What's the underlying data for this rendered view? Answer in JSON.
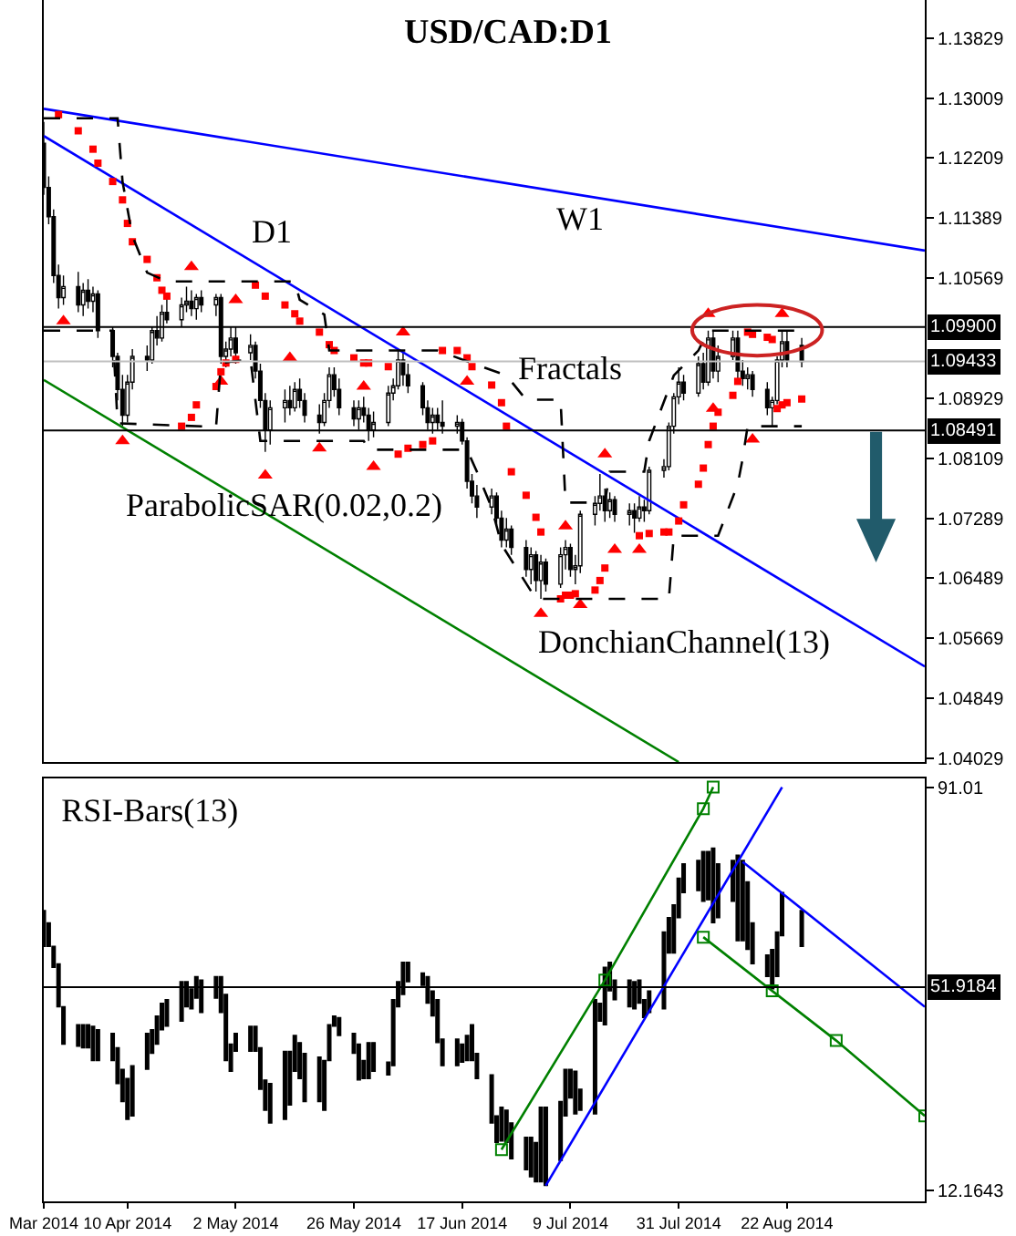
{
  "chart_data": [
    {
      "type": "candlestick",
      "title": "USD/CAD:D1",
      "tick_labels": "y",
      "x": [
        "2014-03-24",
        "2014-03-25",
        "2014-03-26",
        "2014-03-27",
        "2014-03-28",
        "2014-03-31",
        "2014-04-01",
        "2014-04-02",
        "2014-04-03",
        "2014-04-04",
        "2014-04-07",
        "2014-04-08",
        "2014-04-09",
        "2014-04-10",
        "2014-04-11",
        "2014-04-14",
        "2014-04-15",
        "2014-04-16",
        "2014-04-17",
        "2014-04-18",
        "2014-04-21",
        "2014-04-22",
        "2014-04-23",
        "2014-04-24",
        "2014-04-25",
        "2014-04-28",
        "2014-04-29",
        "2014-04-30",
        "2014-05-01",
        "2014-05-02",
        "2014-05-05",
        "2014-05-06",
        "2014-05-07",
        "2014-05-08",
        "2014-05-09",
        "2014-05-12",
        "2014-05-13",
        "2014-05-14",
        "2014-05-15",
        "2014-05-16",
        "2014-05-19",
        "2014-05-20",
        "2014-05-21",
        "2014-05-22",
        "2014-05-23",
        "2014-05-26",
        "2014-05-27",
        "2014-05-28",
        "2014-05-29",
        "2014-05-30",
        "2014-06-02",
        "2014-06-03",
        "2014-06-04",
        "2014-06-05",
        "2014-06-06",
        "2014-06-09",
        "2014-06-10",
        "2014-06-11",
        "2014-06-12",
        "2014-06-13",
        "2014-06-16",
        "2014-06-17",
        "2014-06-18",
        "2014-06-19",
        "2014-06-20",
        "2014-06-23",
        "2014-06-24",
        "2014-06-25",
        "2014-06-26",
        "2014-06-27",
        "2014-06-30",
        "2014-07-01",
        "2014-07-02",
        "2014-07-03",
        "2014-07-04",
        "2014-07-07",
        "2014-07-08",
        "2014-07-09",
        "2014-07-10",
        "2014-07-11",
        "2014-07-14",
        "2014-07-15",
        "2014-07-16",
        "2014-07-17",
        "2014-07-18",
        "2014-07-21",
        "2014-07-22",
        "2014-07-23",
        "2014-07-24",
        "2014-07-25",
        "2014-07-28",
        "2014-07-29",
        "2014-07-30",
        "2014-07-31",
        "2014-08-01",
        "2014-08-04",
        "2014-08-05",
        "2014-08-06",
        "2014-08-07",
        "2014-08-08",
        "2014-08-11",
        "2014-08-12",
        "2014-08-13",
        "2014-08-14",
        "2014-08-15",
        "2014-08-18",
        "2014-08-19",
        "2014-08-20",
        "2014-08-21",
        "2014-08-22",
        "2014-08-25"
      ],
      "ohlc": [
        [
          1.124,
          1.1269,
          1.117,
          1.118
        ],
        [
          1.118,
          1.1195,
          1.113,
          1.114
        ],
        [
          1.114,
          1.115,
          1.105,
          1.106
        ],
        [
          1.106,
          1.1075,
          1.1015,
          1.103
        ],
        [
          1.103,
          1.106,
          1.102,
          1.1045
        ],
        [
          1.1045,
          1.1065,
          1.101,
          1.102
        ],
        [
          1.102,
          1.105,
          1.1005,
          1.104
        ],
        [
          1.104,
          1.1055,
          1.1015,
          1.1025
        ],
        [
          1.1025,
          1.1045,
          1.101,
          1.1035
        ],
        [
          1.1035,
          1.104,
          1.0975,
          1.0985
        ],
        [
          1.0985,
          1.099,
          1.0935,
          1.095
        ],
        [
          1.095,
          1.0955,
          1.089,
          1.0905
        ],
        [
          1.0905,
          1.0925,
          1.0855,
          1.087
        ],
        [
          1.087,
          1.0925,
          1.086,
          1.0915
        ],
        [
          1.0915,
          1.096,
          1.0905,
          1.095
        ],
        [
          1.095,
          1.0965,
          1.093,
          1.0945
        ],
        [
          1.0945,
          1.099,
          1.094,
          1.0985
        ],
        [
          1.0985,
          1.1005,
          1.0965,
          1.0975
        ],
        [
          1.0975,
          1.102,
          1.097,
          1.101
        ],
        [
          1.101,
          1.103,
          1.0995,
          1.1
        ],
        [
          1.1,
          1.103,
          1.099,
          1.102
        ],
        [
          1.102,
          1.1045,
          1.101,
          1.1025
        ],
        [
          1.1025,
          1.104,
          1.1005,
          1.1015
        ],
        [
          1.1015,
          1.1035,
          1.1,
          1.103
        ],
        [
          1.103,
          1.104,
          1.101,
          1.102
        ],
        [
          1.102,
          1.1035,
          1.1005,
          1.103
        ],
        [
          1.103,
          1.1035,
          1.094,
          1.095
        ],
        [
          1.095,
          1.097,
          1.0935,
          1.096
        ],
        [
          1.096,
          1.099,
          1.095,
          1.0975
        ],
        [
          1.0975,
          1.099,
          1.094,
          1.0955
        ],
        [
          1.0955,
          1.098,
          1.0945,
          1.0965
        ],
        [
          1.0965,
          1.097,
          1.092,
          1.093
        ],
        [
          1.093,
          1.094,
          1.088,
          1.089
        ],
        [
          1.089,
          1.09,
          1.082,
          1.085
        ],
        [
          1.085,
          1.089,
          1.083,
          1.088
        ],
        [
          1.088,
          1.0905,
          1.086,
          1.089
        ],
        [
          1.089,
          1.091,
          1.087,
          1.088
        ],
        [
          1.088,
          1.0915,
          1.0875,
          1.0905
        ],
        [
          1.0905,
          1.092,
          1.088,
          1.089
        ],
        [
          1.089,
          1.09,
          1.086,
          1.087
        ],
        [
          1.087,
          1.0885,
          1.0845,
          1.086
        ],
        [
          1.086,
          1.09,
          1.0855,
          1.089
        ],
        [
          1.089,
          1.0935,
          1.088,
          1.0925
        ],
        [
          1.0925,
          1.0935,
          1.0895,
          1.0905
        ],
        [
          1.0905,
          1.092,
          1.087,
          1.088
        ],
        [
          1.088,
          1.089,
          1.0855,
          1.0865
        ],
        [
          1.0865,
          1.089,
          1.085,
          1.088
        ],
        [
          1.088,
          1.0895,
          1.086,
          1.087
        ],
        [
          1.087,
          1.088,
          1.0835,
          1.085
        ],
        [
          1.085,
          1.0875,
          1.084,
          1.086
        ],
        [
          1.086,
          1.091,
          1.0855,
          1.09
        ],
        [
          1.09,
          1.092,
          1.089,
          1.091
        ],
        [
          1.091,
          1.096,
          1.0905,
          1.0945
        ],
        [
          1.0945,
          1.0955,
          1.091,
          1.0925
        ],
        [
          1.0925,
          1.094,
          1.09,
          1.091
        ],
        [
          1.091,
          1.0915,
          1.087,
          1.088
        ],
        [
          1.088,
          1.089,
          1.085,
          1.086
        ],
        [
          1.086,
          1.088,
          1.0845,
          1.087
        ],
        [
          1.087,
          1.088,
          1.085,
          1.086
        ],
        [
          1.086,
          1.089,
          1.0845,
          1.0855
        ],
        [
          1.0855,
          1.087,
          1.0845,
          1.086
        ],
        [
          1.086,
          1.0865,
          1.083,
          1.0835
        ],
        [
          1.0835,
          1.084,
          1.077,
          1.078
        ],
        [
          1.078,
          1.079,
          1.075,
          1.076
        ],
        [
          1.076,
          1.0775,
          1.073,
          1.0745
        ],
        [
          1.0745,
          1.077,
          1.0735,
          1.076
        ],
        [
          1.076,
          1.0765,
          1.072,
          1.073
        ],
        [
          1.073,
          1.074,
          1.069,
          1.07
        ],
        [
          1.07,
          1.073,
          1.069,
          1.0715
        ],
        [
          1.0715,
          1.072,
          1.068,
          1.069
        ],
        [
          1.069,
          1.07,
          1.065,
          1.066
        ],
        [
          1.066,
          1.069,
          1.064,
          1.068
        ],
        [
          1.068,
          1.0685,
          1.063,
          1.0645
        ],
        [
          1.0645,
          1.068,
          1.062,
          1.067
        ],
        [
          1.067,
          1.0675,
          1.063,
          1.064
        ],
        [
          1.064,
          1.069,
          1.0635,
          1.068
        ],
        [
          1.068,
          1.07,
          1.066,
          1.069
        ],
        [
          1.069,
          1.0695,
          1.065,
          1.066
        ],
        [
          1.066,
          1.068,
          1.064,
          1.0665
        ],
        [
          1.0665,
          1.074,
          1.0655,
          1.0735
        ],
        [
          1.0735,
          1.076,
          1.072,
          1.075
        ],
        [
          1.075,
          1.079,
          1.074,
          1.076
        ],
        [
          1.076,
          1.077,
          1.0725,
          1.074
        ],
        [
          1.074,
          1.0765,
          1.073,
          1.0755
        ],
        [
          1.0755,
          1.076,
          1.0725,
          1.0735
        ],
        [
          1.0735,
          1.075,
          1.072,
          1.074
        ],
        [
          1.074,
          1.075,
          1.071,
          1.073
        ],
        [
          1.073,
          1.076,
          1.0725,
          1.0745
        ],
        [
          1.0745,
          1.0755,
          1.0725,
          1.074
        ],
        [
          1.074,
          1.08,
          1.0735,
          1.0795
        ],
        [
          1.0795,
          1.081,
          1.0785,
          1.08
        ],
        [
          1.08,
          1.086,
          1.0795,
          1.0855
        ],
        [
          1.0855,
          1.09,
          1.0845,
          1.0895
        ],
        [
          1.0895,
          1.0935,
          1.0885,
          1.0915
        ],
        [
          1.0915,
          1.0925,
          1.089,
          1.09
        ],
        [
          1.09,
          1.095,
          1.0895,
          1.094
        ],
        [
          1.094,
          1.0955,
          1.0905,
          1.0915
        ],
        [
          1.0915,
          1.0985,
          1.091,
          1.0975
        ],
        [
          1.0975,
          1.0985,
          1.092,
          1.093
        ],
        [
          1.093,
          1.0965,
          1.0915,
          1.095
        ],
        [
          1.095,
          1.0985,
          1.0945,
          1.0975
        ],
        [
          1.0975,
          1.0985,
          1.092,
          1.093
        ],
        [
          1.093,
          1.0945,
          1.091,
          1.092
        ],
        [
          1.092,
          1.0935,
          1.0905,
          1.0925
        ],
        [
          1.0925,
          1.093,
          1.0895,
          1.0905
        ],
        [
          1.0905,
          1.0915,
          1.087,
          1.088
        ],
        [
          1.088,
          1.0895,
          1.0855,
          1.089
        ],
        [
          1.089,
          1.095,
          1.0885,
          1.0945
        ],
        [
          1.0945,
          1.0985,
          1.0935,
          1.097
        ],
        [
          1.097,
          1.0985,
          1.0935,
          1.0945
        ],
        [
          1.0965,
          1.0975,
          1.0935,
          1.0943
        ]
      ],
      "xlim": [
        "2014-03-24",
        "2014-09-19"
      ],
      "ylim": [
        1.0398,
        1.1435
      ],
      "yticks": [
        1.13829,
        1.13009,
        1.12209,
        1.11389,
        1.10569,
        1.08929,
        1.08109,
        1.07289,
        1.06489,
        1.05669,
        1.04849,
        1.04029
      ],
      "ref_lines": [
        {
          "axis": "y",
          "value": 1.099,
          "label": "1.09900",
          "color": "#000000"
        },
        {
          "axis": "y",
          "value": 1.09433,
          "label": "1.09433",
          "color": "#c0c0c0"
        },
        {
          "axis": "y",
          "value": 1.08491,
          "label": "1.08491",
          "color": "#000000"
        }
      ],
      "series": [
        {
          "type": "line",
          "color": "#0000ff",
          "x": [
            "2014-03-24",
            "2014-09-19"
          ],
          "values": [
            1.1287,
            1.1094
          ]
        },
        {
          "type": "line",
          "color": "#0000ff",
          "x": [
            "2014-03-24",
            "2014-09-19"
          ],
          "values": [
            1.125,
            1.0528
          ]
        },
        {
          "type": "line",
          "color": "#008000",
          "x": [
            "2014-03-24",
            "2014-07-31"
          ],
          "values": [
            1.0918,
            1.0398
          ]
        },
        {
          "type": "scatter",
          "color": "#ff0000",
          "marker": "square",
          "x": [
            "2014-03-27",
            "2014-03-31",
            "2014-04-03",
            "2014-04-04",
            "2014-04-07",
            "2014-04-09",
            "2014-04-10",
            "2014-04-11",
            "2014-04-14",
            "2014-04-16",
            "2014-04-17",
            "2014-04-18",
            "2014-04-21",
            "2014-04-23",
            "2014-04-24",
            "2014-04-28",
            "2014-04-29",
            "2014-04-30",
            "2014-05-02",
            "2014-05-06",
            "2014-05-08",
            "2014-05-12",
            "2014-05-14",
            "2014-05-15",
            "2014-05-19",
            "2014-05-21",
            "2014-05-22",
            "2014-05-26",
            "2014-05-28",
            "2014-05-29",
            "2014-06-02",
            "2014-06-04",
            "2014-06-06",
            "2014-06-09",
            "2014-06-11",
            "2014-06-13",
            "2014-06-16",
            "2014-06-18",
            "2014-06-19",
            "2014-06-23",
            "2014-06-25",
            "2014-06-26",
            "2014-06-27",
            "2014-06-30",
            "2014-07-02",
            "2014-07-03",
            "2014-07-07",
            "2014-07-08",
            "2014-07-09",
            "2014-07-10",
            "2014-07-14",
            "2014-07-15",
            "2014-07-16",
            "2014-07-23",
            "2014-07-25",
            "2014-07-28",
            "2014-07-29",
            "2014-07-31",
            "2014-08-01",
            "2014-08-04",
            "2014-08-05",
            "2014-08-06",
            "2014-08-07",
            "2014-08-08",
            "2014-08-11",
            "2014-08-12",
            "2014-08-14",
            "2014-08-15",
            "2014-08-18",
            "2014-08-19",
            "2014-08-20",
            "2014-08-21",
            "2014-08-22",
            "2014-08-25"
          ],
          "values": [
            1.1279,
            1.1257,
            1.1232,
            1.1213,
            1.1188,
            1.1163,
            1.1131,
            1.1106,
            1.1082,
            1.1057,
            1.104,
            1.1032,
            1.0855,
            1.0867,
            1.0884,
            1.0909,
            1.0929,
            1.0941,
            1.0946,
            1.1047,
            1.1032,
            1.102,
            1.1008,
            1.0998,
            1.0983,
            1.0966,
            1.0958,
            1.0948,
            1.0941,
            1.0941,
            1.0936,
            1.0817,
            1.0825,
            1.083,
            1.0835,
            1.0958,
            1.0958,
            1.0948,
            1.0936,
            1.0911,
            1.0887,
            1.0855,
            1.0793,
            1.0761,
            1.0731,
            1.0711,
            1.062,
            1.0625,
            1.0625,
            1.0627,
            1.0632,
            1.0645,
            1.0662,
            1.0706,
            1.0709,
            1.0711,
            1.0711,
            1.0726,
            1.0748,
            1.0776,
            1.0798,
            1.083,
            1.0855,
            1.0874,
            1.0897,
            1.0916,
            1.0983,
            1.098,
            1.0976,
            1.0973,
            1.0879,
            1.0884,
            1.0887,
            1.0892
          ]
        },
        {
          "type": "scatter",
          "color": "#ff0000",
          "marker": "triangle",
          "x": [
            "2014-04-23",
            "2014-05-02",
            "2014-05-13",
            "2014-05-28",
            "2014-06-05",
            "2014-06-18",
            "2014-07-08",
            "2014-07-16",
            "2014-08-06",
            "2014-08-21"
          ],
          "values": [
            1.1072,
            1.1027,
            1.0948,
            1.0909,
            1.0983,
            1.0916,
            1.0719,
            1.0817,
            1.1008,
            1.1008
          ]
        },
        {
          "type": "scatter",
          "color": "#ff0000",
          "marker": "triangle",
          "x": [
            "2014-03-28",
            "2014-04-09",
            "2014-04-29",
            "2014-05-08",
            "2014-05-19",
            "2014-05-30",
            "2014-07-03",
            "2014-07-11",
            "2014-07-18",
            "2014-07-23",
            "2014-08-07",
            "2014-08-15"
          ],
          "values": [
            1.0998,
            1.0835,
            1.0916,
            1.0788,
            1.0825,
            1.08,
            1.06,
            1.0612,
            1.0687,
            1.0687,
            1.0879,
            1.0837
          ]
        },
        {
          "type": "line",
          "color": "#000000",
          "line_style": "dashed",
          "x": [
            "2014-03-24",
            "2014-04-08",
            "2014-04-09",
            "2014-04-11",
            "2014-04-14",
            "2014-04-18",
            "2014-05-14",
            "2014-05-15",
            "2014-05-20",
            "2014-05-21",
            "2014-06-12",
            "2014-06-26",
            "2014-06-30",
            "2014-07-07",
            "2014-07-08",
            "2014-07-16",
            "2014-07-17",
            "2014-07-24",
            "2014-07-25",
            "2014-07-30",
            "2014-08-04",
            "2014-08-06",
            "2014-08-25"
          ],
          "values": [
            1.1274,
            1.1274,
            1.1188,
            1.1114,
            1.1064,
            1.1052,
            1.1052,
            1.1027,
            1.1007,
            1.0958,
            1.0958,
            1.0924,
            1.0891,
            1.0891,
            1.0751,
            1.0751,
            1.0793,
            1.0793,
            1.0835,
            1.0924,
            1.0958,
            1.0985,
            1.0985
          ]
        },
        {
          "type": "line",
          "color": "#000000",
          "line_style": "dashed",
          "x": [
            "2014-03-24",
            "2014-04-07",
            "2014-04-08",
            "2014-04-28",
            "2014-04-29",
            "2014-05-05",
            "2014-05-07",
            "2014-05-28",
            "2014-05-29",
            "2014-06-18",
            "2014-06-20",
            "2014-06-23",
            "2014-06-25",
            "2014-07-02",
            "2014-07-29",
            "2014-07-30",
            "2014-08-08",
            "2014-08-12",
            "2014-08-13",
            "2014-08-14",
            "2014-08-25"
          ],
          "values": [
            1.0985,
            1.0985,
            1.0859,
            1.0854,
            1.0941,
            1.0946,
            1.0835,
            1.0835,
            1.0823,
            1.0823,
            1.0793,
            1.0744,
            1.0694,
            1.062,
            1.062,
            1.0706,
            1.0706,
            1.0776,
            1.0811,
            1.0855,
            1.0855
          ]
        }
      ],
      "annotations": [
        "D1",
        "W1",
        "Fractals",
        "ParabolicSAR(0.02,0.2)",
        "DonchianChannel(13)"
      ]
    },
    {
      "type": "candlestick",
      "title": "RSI-Bars(13)",
      "x": [
        "2014-03-24",
        "2014-03-25",
        "2014-03-26",
        "2014-03-27",
        "2014-03-28",
        "2014-03-31",
        "2014-04-01",
        "2014-04-02",
        "2014-04-03",
        "2014-04-04",
        "2014-04-07",
        "2014-04-08",
        "2014-04-09",
        "2014-04-10",
        "2014-04-11",
        "2014-04-14",
        "2014-04-15",
        "2014-04-16",
        "2014-04-17",
        "2014-04-18",
        "2014-04-21",
        "2014-04-22",
        "2014-04-23",
        "2014-04-24",
        "2014-04-25",
        "2014-04-28",
        "2014-04-29",
        "2014-04-30",
        "2014-05-01",
        "2014-05-02",
        "2014-05-05",
        "2014-05-06",
        "2014-05-07",
        "2014-05-08",
        "2014-05-09",
        "2014-05-12",
        "2014-05-13",
        "2014-05-14",
        "2014-05-15",
        "2014-05-16",
        "2014-05-19",
        "2014-05-20",
        "2014-05-21",
        "2014-05-22",
        "2014-05-23",
        "2014-05-26",
        "2014-05-27",
        "2014-05-28",
        "2014-05-29",
        "2014-05-30",
        "2014-06-02",
        "2014-06-03",
        "2014-06-04",
        "2014-06-05",
        "2014-06-06",
        "2014-06-09",
        "2014-06-10",
        "2014-06-11",
        "2014-06-12",
        "2014-06-13",
        "2014-06-16",
        "2014-06-17",
        "2014-06-18",
        "2014-06-19",
        "2014-06-20",
        "2014-06-23",
        "2014-06-24",
        "2014-06-25",
        "2014-06-26",
        "2014-06-27",
        "2014-06-30",
        "2014-07-01",
        "2014-07-02",
        "2014-07-03",
        "2014-07-04",
        "2014-07-07",
        "2014-07-08",
        "2014-07-09",
        "2014-07-10",
        "2014-07-11",
        "2014-07-14",
        "2014-07-15",
        "2014-07-16",
        "2014-07-17",
        "2014-07-18",
        "2014-07-21",
        "2014-07-22",
        "2014-07-23",
        "2014-07-24",
        "2014-07-25",
        "2014-07-28",
        "2014-07-29",
        "2014-07-30",
        "2014-07-31",
        "2014-08-01",
        "2014-08-04",
        "2014-08-05",
        "2014-08-06",
        "2014-08-07",
        "2014-08-08",
        "2014-08-11",
        "2014-08-12",
        "2014-08-13",
        "2014-08-14",
        "2014-08-15",
        "2014-08-18",
        "2014-08-19",
        "2014-08-20",
        "2014-08-21",
        "2014-08-25"
      ],
      "ohlc": [
        [
          66.9,
          66.9,
          59.9,
          59.9
        ],
        [
          64.5,
          64.5,
          59.9,
          59.9
        ],
        [
          59.9,
          59.9,
          55.8,
          55.8
        ],
        [
          56.5,
          56.5,
          48.1,
          48.1
        ],
        [
          48.1,
          48.1,
          40.8,
          40.8
        ],
        [
          44.6,
          44.6,
          40.4,
          40.4
        ],
        [
          44.6,
          44.6,
          40.1,
          40.1
        ],
        [
          44.6,
          44.6,
          40.1,
          40.1
        ],
        [
          44.3,
          44.3,
          37.6,
          37.6
        ],
        [
          43.6,
          43.6,
          37.6,
          37.6
        ],
        [
          42.9,
          42.9,
          37.6,
          37.6
        ],
        [
          40.1,
          40.1,
          33.1,
          33.1
        ],
        [
          35.9,
          35.9,
          29.6,
          29.6
        ],
        [
          34.1,
          34.1,
          26.1,
          26.1
        ],
        [
          36.6,
          36.6,
          26.8,
          26.8
        ],
        [
          42.9,
          42.9,
          35.9,
          35.9
        ],
        [
          43.6,
          43.6,
          39.0,
          39.0
        ],
        [
          46.3,
          46.3,
          40.8,
          40.8
        ],
        [
          48.8,
          48.8,
          43.6,
          43.6
        ],
        [
          49.5,
          49.5,
          44.3,
          44.3
        ],
        [
          53.0,
          53.0,
          45.3,
          45.3
        ],
        [
          53.0,
          53.0,
          48.1,
          48.1
        ],
        [
          51.6,
          51.6,
          47.7,
          47.7
        ],
        [
          54.0,
          54.0,
          49.8,
          49.8
        ],
        [
          53.3,
          53.3,
          47.0,
          47.0
        ],
        [
          54.0,
          54.0,
          49.8,
          49.8
        ],
        [
          54.0,
          54.0,
          47.0,
          47.0
        ],
        [
          50.5,
          50.5,
          37.6,
          37.6
        ],
        [
          40.8,
          40.8,
          35.5,
          35.5
        ],
        [
          42.9,
          42.9,
          39.4,
          39.4
        ],
        [
          44.3,
          44.3,
          39.4,
          39.4
        ],
        [
          44.3,
          44.3,
          39.4,
          39.4
        ],
        [
          40.1,
          40.1,
          32.0,
          32.0
        ],
        [
          33.8,
          33.8,
          27.9,
          27.9
        ],
        [
          33.1,
          33.1,
          25.4,
          25.4
        ],
        [
          39.4,
          39.4,
          26.1,
          26.1
        ],
        [
          39.4,
          39.4,
          28.9,
          28.9
        ],
        [
          42.5,
          42.5,
          35.5,
          35.5
        ],
        [
          41.1,
          41.1,
          34.1,
          34.1
        ],
        [
          39.0,
          39.0,
          29.6,
          29.6
        ],
        [
          38.3,
          38.3,
          29.6,
          29.6
        ],
        [
          37.6,
          37.6,
          27.9,
          27.9
        ],
        [
          44.6,
          44.6,
          37.6,
          37.6
        ],
        [
          46.3,
          46.3,
          44.3,
          44.3
        ],
        [
          46.0,
          46.0,
          42.5,
          42.5
        ],
        [
          42.9,
          42.9,
          39.0,
          39.0
        ],
        [
          40.8,
          40.8,
          33.8,
          33.8
        ],
        [
          37.6,
          37.6,
          34.1,
          34.1
        ],
        [
          41.1,
          41.1,
          34.1,
          34.1
        ],
        [
          41.1,
          41.1,
          35.5,
          35.5
        ],
        [
          37.3,
          37.3,
          34.8,
          34.8
        ],
        [
          49.5,
          49.5,
          36.6,
          36.6
        ],
        [
          53.0,
          53.0,
          48.1,
          48.1
        ],
        [
          56.8,
          56.8,
          50.5,
          50.5
        ],
        [
          56.8,
          56.8,
          53.0,
          53.0
        ],
        [
          54.7,
          54.7,
          52.3,
          52.3
        ],
        [
          54.0,
          54.0,
          48.8,
          48.8
        ],
        [
          51.2,
          51.2,
          46.3,
          46.3
        ],
        [
          49.5,
          49.5,
          41.1,
          41.1
        ],
        [
          41.8,
          41.8,
          36.6,
          36.6
        ],
        [
          41.8,
          41.8,
          36.6,
          36.6
        ],
        [
          40.8,
          40.8,
          37.3,
          37.3
        ],
        [
          42.5,
          42.5,
          37.6,
          37.6
        ],
        [
          44.6,
          44.6,
          37.6,
          37.6
        ],
        [
          39.0,
          39.0,
          34.1,
          34.1
        ],
        [
          34.8,
          34.8,
          25.4,
          25.4
        ],
        [
          26.8,
          26.8,
          21.6,
          21.6
        ],
        [
          28.5,
          28.5,
          21.9,
          21.9
        ],
        [
          27.9,
          27.9,
          21.6,
          21.6
        ],
        [
          25.4,
          25.4,
          18.4,
          18.4
        ],
        [
          22.6,
          22.6,
          16.3,
          16.3
        ],
        [
          22.6,
          22.6,
          14.9,
          14.9
        ],
        [
          21.6,
          21.6,
          13.9,
          13.9
        ],
        [
          28.5,
          28.5,
          13.9,
          13.9
        ],
        [
          28.5,
          28.5,
          13.2,
          13.2
        ],
        [
          29.6,
          29.6,
          18.1,
          18.1
        ],
        [
          35.9,
          35.9,
          26.8,
          26.8
        ],
        [
          35.9,
          35.9,
          30.3,
          30.3
        ],
        [
          35.5,
          35.5,
          27.2,
          27.2
        ],
        [
          32.0,
          32.0,
          27.9,
          27.9
        ],
        [
          49.5,
          49.5,
          27.2,
          27.2
        ],
        [
          48.8,
          48.8,
          45.3,
          45.3
        ],
        [
          55.8,
          55.8,
          44.6,
          44.6
        ],
        [
          56.8,
          56.8,
          51.2,
          51.2
        ],
        [
          53.3,
          53.3,
          49.5,
          49.5
        ],
        [
          53.3,
          53.3,
          48.1,
          48.1
        ],
        [
          53.0,
          53.0,
          47.7,
          47.7
        ],
        [
          53.3,
          53.3,
          48.8,
          48.8
        ],
        [
          49.5,
          49.5,
          46.0,
          46.0
        ],
        [
          51.2,
          51.2,
          47.0,
          47.0
        ],
        [
          62.7,
          62.7,
          47.7,
          47.7
        ],
        [
          65.5,
          65.5,
          58.6,
          58.6
        ],
        [
          68.0,
          68.0,
          58.6,
          58.6
        ],
        [
          73.2,
          73.2,
          65.5,
          65.5
        ],
        [
          76.0,
          76.0,
          70.4,
          70.4
        ],
        [
          76.7,
          76.7,
          70.8,
          70.8
        ],
        [
          78.4,
          78.4,
          68.7,
          68.7
        ],
        [
          78.4,
          78.4,
          69.0,
          69.0
        ],
        [
          79.1,
          79.1,
          64.5,
          64.5
        ],
        [
          76.0,
          76.0,
          65.5,
          65.5
        ],
        [
          76.7,
          76.7,
          68.7,
          68.7
        ],
        [
          77.7,
          77.7,
          61.0,
          61.0
        ],
        [
          76.7,
          76.7,
          61.0,
          61.0
        ],
        [
          72.5,
          72.5,
          59.3,
          59.3
        ],
        [
          64.5,
          64.5,
          56.5,
          56.5
        ],
        [
          58.2,
          58.2,
          54.0,
          54.0
        ],
        [
          59.3,
          59.3,
          51.6,
          51.6
        ],
        [
          62.7,
          62.7,
          54.0,
          54.0
        ],
        [
          70.4,
          70.4,
          62.0,
          62.0
        ],
        [
          66.9,
          66.9,
          59.9,
          59.9
        ]
      ],
      "xlim": [
        "2014-03-24",
        "2014-09-19"
      ],
      "ylim": [
        10.1,
        92.7
      ],
      "yticks": [
        91.01,
        12.1643
      ],
      "xticks": [
        {
          "value": "2014-03-24",
          "label": "Mar 2014"
        },
        {
          "value": "2014-04-10",
          "label": "10 Apr 2014"
        },
        {
          "value": "2014-05-02",
          "label": "2 May 2014"
        },
        {
          "value": "2014-05-26",
          "label": "26 May 2014"
        },
        {
          "value": "2014-06-17",
          "label": "17 Jun 2014"
        },
        {
          "value": "2014-07-09",
          "label": "9 Jul 2014"
        },
        {
          "value": "2014-07-31",
          "label": "31 Jul 2014"
        },
        {
          "value": "2014-08-22",
          "label": "22 Aug 2014"
        }
      ],
      "ref_lines": [
        {
          "axis": "y",
          "value": 51.9184,
          "label": "51.9184",
          "color": "#000000"
        }
      ],
      "series": [
        {
          "type": "line",
          "color": "#008000",
          "marker": "square",
          "x": [
            "2014-06-25",
            "2014-07-16",
            "2014-08-05",
            "2014-08-07"
          ],
          "values": [
            20.2,
            53.3,
            86.8,
            91.0
          ]
        },
        {
          "type": "line",
          "color": "#0000ff",
          "x": [
            "2014-07-04",
            "2014-08-21"
          ],
          "values": [
            13.2,
            91.0
          ]
        },
        {
          "type": "line",
          "color": "#008000",
          "marker": "square",
          "x": [
            "2014-08-05",
            "2014-08-19",
            "2014-09-01",
            "2014-09-19"
          ],
          "values": [
            61.7,
            51.2,
            41.5,
            26.8
          ]
        },
        {
          "type": "line",
          "color": "#0000ff",
          "x": [
            "2014-08-13",
            "2014-09-19"
          ],
          "values": [
            76.4,
            48.1
          ]
        }
      ]
    }
  ]
}
